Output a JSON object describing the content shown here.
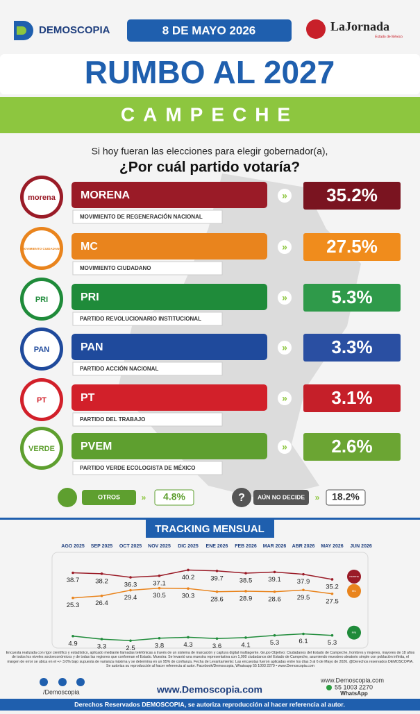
{
  "header": {
    "brand": "DEMOSCOPIA",
    "date": "8 DE MAYO 2026",
    "partner": "LaJornada",
    "partner_sub": "Estado de México",
    "title": "RUMBO AL 2027",
    "subtitle": "CAMPECHE"
  },
  "question": {
    "line1": "Si hoy fueran las elecciones para elegir gobernador(a),",
    "line2": "¿Por cuál partido votaría?"
  },
  "parties": [
    {
      "logo": "morena",
      "name": "MORENA",
      "full_name": "MOVIMIENTO DE REGENERACIÓN NACIONAL",
      "value": "35.2%",
      "color": "#9a1b27",
      "box_color": "#7a1420"
    },
    {
      "logo": "MOVIMIENTO CIUDADANO",
      "name": "MC",
      "full_name": "MOVIMIENTO CIUDADANO",
      "value": "27.5%",
      "color": "#e9841d",
      "box_color": "#f08c1c"
    },
    {
      "logo": "PRI",
      "name": "PRI",
      "full_name": "PARTIDO REVOLUCIONARIO INSTITUCIONAL",
      "value": "5.3%",
      "color": "#1f8b3a",
      "box_color": "#2f9a4a"
    },
    {
      "logo": "PAN",
      "name": "PAN",
      "full_name": "PARTIDO ACCIÓN NACIONAL",
      "value": "3.3%",
      "color": "#1f4a9c",
      "box_color": "#2a4fa2"
    },
    {
      "logo": "PT",
      "name": "PT",
      "full_name": "PARTIDO DEL TRABAJO",
      "value": "3.1%",
      "color": "#d2202a",
      "box_color": "#c51f29"
    },
    {
      "logo": "VERDE",
      "name": "PVEM",
      "full_name": "PARTIDO VERDE ECOLOGISTA DE MÉXICO",
      "value": "2.6%",
      "color": "#5e9f2f",
      "box_color": "#6ba533"
    }
  ],
  "others": {
    "label": "OTROS",
    "value": "4.8%"
  },
  "undecided": {
    "label": "AÚN NO DECIDE",
    "value": "18.2%"
  },
  "tracking": {
    "title": "TRACKING MENSUAL",
    "months": [
      "AGO 2025",
      "SEP 2025",
      "OCT 2025",
      "NOV 2025",
      "DIC 2025",
      "ENE 2026",
      "FEB 2026",
      "MAR 2026",
      "ABR 2026",
      "MAY 2026",
      "JUN 2026"
    ],
    "series": [
      {
        "logo": "morena",
        "color": "#9a1b27",
        "values": [
          38.7,
          38.2,
          36.3,
          37.1,
          40.2,
          39.7,
          38.5,
          39.1,
          37.9,
          35.2
        ]
      },
      {
        "logo": "MC",
        "color": "#e9841d",
        "values": [
          25.3,
          26.4,
          29.4,
          30.5,
          30.3,
          28.6,
          28.9,
          28.6,
          29.5,
          27.5
        ]
      },
      {
        "logo": "PRI",
        "color": "#1f8b3a",
        "values": [
          4.9,
          3.3,
          2.5,
          3.8,
          4.3,
          3.6,
          4.1,
          5.3,
          6.1,
          5.3
        ]
      }
    ]
  },
  "footer": {
    "disclaimer": "Encuesta realizada con rigor científico y estadístico, aplicado mediante llamadas telefónicas a través de un sistema de marcación y captura digital multiagente. Grupo Objetivo: Ciudadanos del Estado de Campeche, hombres y mujeres, mayores de 18 años de todos los niveles socioeconómicos y de todas las regiones que conforman el Estado. Muestra: Se levantó una muestra representativa con 1,000 ciudadanos del Estado de Campeche, asumiendo muestreo aleatorio simple con población infinita, el margen de error se ubica en el +/- 3.0% bajo supuesta de varianza máxima y se determina en un 95% de confianza. Fecha de Levantamiento: Las encuestas fueron aplicadas entre los días 3 al 6 de Mayo de 2026. @Derechos reservados DEMOSCOPIA. Se autoriza su reproducción al hacer referencia al autor. Facebook/Demoscopia, Whatsapp 55 1003 2270 • www.Demoscopia.com",
    "social": "/Demoscopia",
    "site": "www.Demoscopia.com",
    "site_small": "www.Demoscopia.com",
    "phone": "55 1003 2270",
    "whatsapp": "WhatsApp",
    "rights": "Derechos Reservados DEMOSCOPIA, se autoriza reproducción al hacer referencia al autor."
  }
}
